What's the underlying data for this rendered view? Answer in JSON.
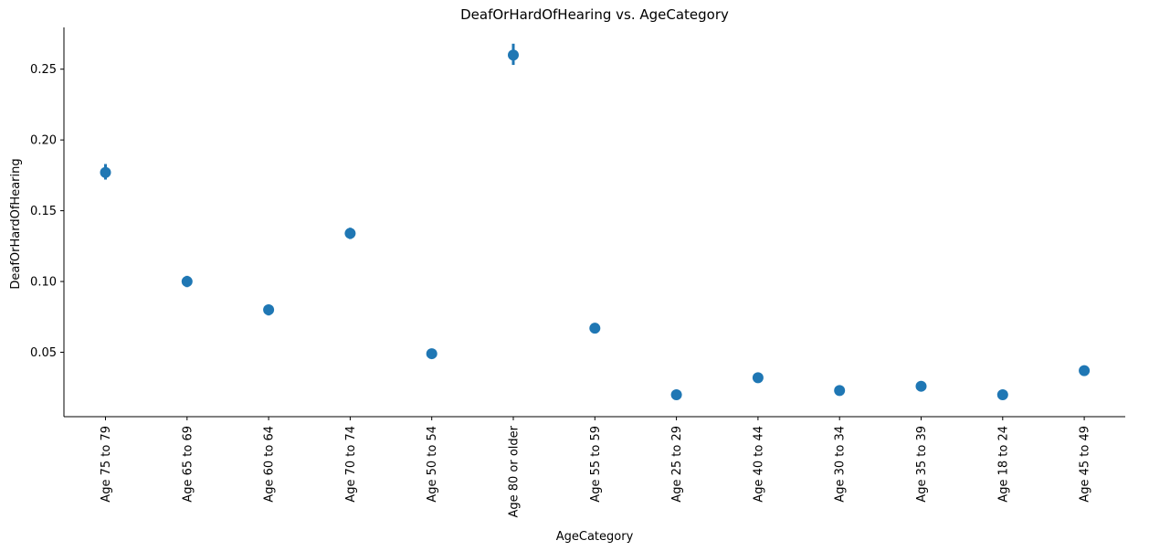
{
  "chart_data": {
    "type": "scatter",
    "title": "DeafOrHardOfHearing vs. AgeCategory",
    "xlabel": "AgeCategory",
    "ylabel": "DeafOrHardOfHearing",
    "ylim": [
      0.0045,
      0.2795
    ],
    "yticks": [
      0.05,
      0.1,
      0.15,
      0.2,
      0.25
    ],
    "ytick_labels": [
      "0.05",
      "0.10",
      "0.15",
      "0.20",
      "0.25"
    ],
    "color": "#1f77b4",
    "grid": false,
    "legend": "none",
    "categories": [
      "Age 75 to 79",
      "Age 65 to 69",
      "Age 60 to 64",
      "Age 70 to 74",
      "Age 50 to 54",
      "Age 80 or older",
      "Age 55 to 59",
      "Age 25 to 29",
      "Age 40 to 44",
      "Age 30 to 34",
      "Age 35 to 39",
      "Age 18 to 24",
      "Age 45 to 49"
    ],
    "values": [
      0.177,
      0.1,
      0.08,
      0.134,
      0.049,
      0.26,
      0.067,
      0.02,
      0.032,
      0.023,
      0.026,
      0.02,
      0.037
    ],
    "ci_low": [
      0.172,
      0.096,
      0.076,
      0.13,
      0.046,
      0.253,
      0.064,
      0.018,
      0.029,
      0.021,
      0.023,
      0.018,
      0.034
    ],
    "ci_high": [
      0.183,
      0.104,
      0.083,
      0.138,
      0.052,
      0.268,
      0.07,
      0.023,
      0.035,
      0.025,
      0.029,
      0.022,
      0.04
    ]
  }
}
